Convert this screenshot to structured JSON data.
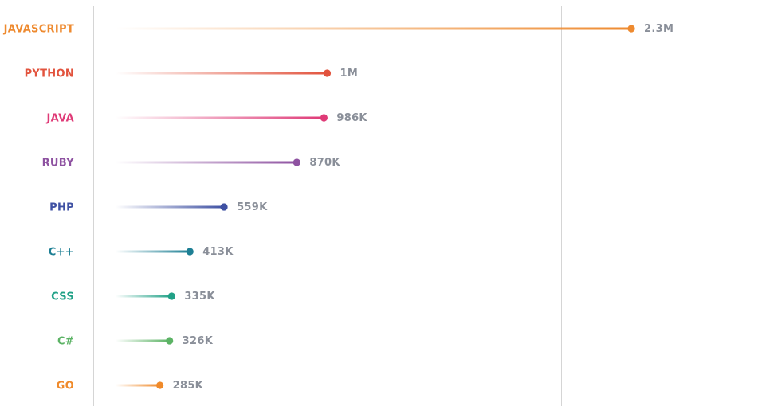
{
  "chart_data": {
    "type": "bar",
    "orientation": "horizontal",
    "style": "lollipop",
    "categories": [
      "JAVASCRIPT",
      "PYTHON",
      "JAVA",
      "RUBY",
      "PHP",
      "C++",
      "CSS",
      "C#",
      "GO"
    ],
    "values": [
      2300000,
      1000000,
      986000,
      870000,
      559000,
      413000,
      335000,
      326000,
      285000
    ],
    "value_labels": [
      "2.3M",
      "1M",
      "986K",
      "870K",
      "559K",
      "413K",
      "335K",
      "326K",
      "285K"
    ],
    "colors": [
      "#ee8a2f",
      "#e2533d",
      "#df3a77",
      "#8e52a1",
      "#3f51a3",
      "#1d7f94",
      "#21a187",
      "#5cb365",
      "#f08a2a"
    ],
    "title": "",
    "xlabel": "",
    "ylabel": "",
    "xlim": [
      0,
      2500000
    ],
    "grid": true,
    "legend": "none"
  }
}
